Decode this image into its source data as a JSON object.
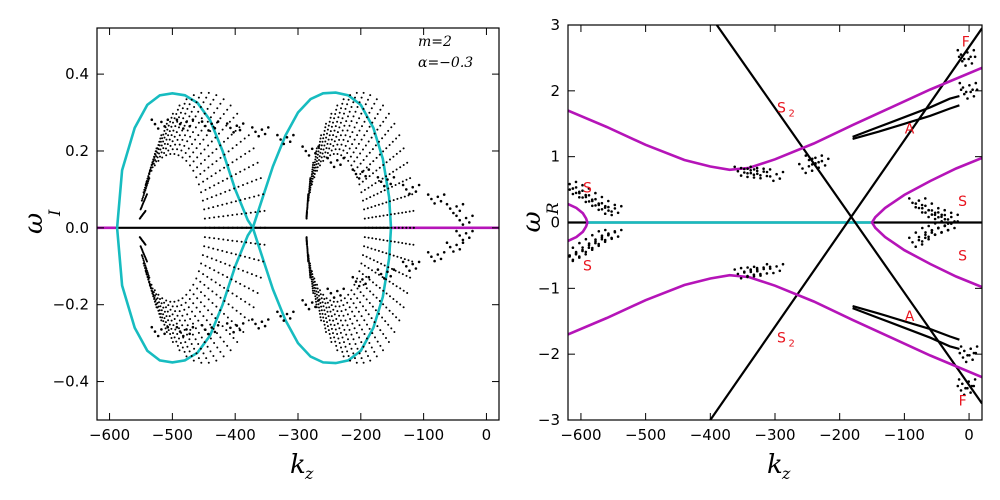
{
  "colors": {
    "black": "#000000",
    "cyan": "#17bcc0",
    "magenta": "#b514b8",
    "red": "#e8141e"
  },
  "chart_data": [
    {
      "type": "scatter",
      "xlabel": "k",
      "xlabel_sub": "z",
      "ylabel": "ω",
      "ylabel_sub": "I",
      "xlim": [
        -620,
        20
      ],
      "ylim": [
        -0.5,
        0.52
      ],
      "xticks": [
        -600,
        -500,
        -400,
        -300,
        -200,
        -100,
        0
      ],
      "xtick_labels": [
        "−600",
        "−500",
        "−400",
        "−300",
        "−200",
        "−100",
        "0"
      ],
      "yticks": [
        -0.4,
        -0.2,
        0.0,
        0.2,
        0.4
      ],
      "ytick_labels": [
        "−0.4",
        "−0.2",
        "0.0",
        "0.2",
        "0.4"
      ],
      "params": [
        "m=2",
        "α=−0.3"
      ],
      "series": [
        {
          "color": "black",
          "style": "line",
          "x": [
            -620,
            -150
          ],
          "y": [
            0,
            0
          ]
        },
        {
          "color": "magenta",
          "style": "line",
          "x": [
            -620,
            -590
          ],
          "y": [
            0,
            0
          ]
        },
        {
          "color": "magenta",
          "style": "line",
          "x": [
            -150,
            20
          ],
          "y": [
            0,
            0
          ]
        },
        {
          "color": "cyan",
          "style": "ellipse",
          "center": [
            -500,
            0.35
          ],
          "semi_x": 7
        },
        {
          "color": "cyan",
          "style": "loop",
          "x": [
            -588,
            -580,
            -560,
            -540,
            -520,
            -500,
            -480,
            -460,
            -440,
            -420,
            -400,
            -380,
            -372,
            -380,
            -400,
            -420,
            -440,
            -460,
            -480,
            -500,
            -520,
            -540,
            -560,
            -580,
            -588
          ],
          "y": [
            0,
            0.15,
            0.26,
            0.32,
            0.345,
            0.35,
            0.345,
            0.325,
            0.28,
            0.2,
            0.1,
            0.02,
            0,
            -0.02,
            -0.1,
            -0.2,
            -0.28,
            -0.325,
            -0.345,
            -0.35,
            -0.345,
            -0.32,
            -0.26,
            -0.15,
            0
          ]
        },
        {
          "color": "cyan",
          "style": "loop",
          "x": [
            -372,
            -360,
            -340,
            -320,
            -300,
            -280,
            -260,
            -240,
            -220,
            -200,
            -180,
            -165,
            -155,
            -152,
            -155,
            -165,
            -180,
            -200,
            -220,
            -240,
            -260,
            -280,
            -300,
            -320,
            -340,
            -360,
            -372
          ],
          "y": [
            0,
            0.06,
            0.16,
            0.24,
            0.3,
            0.335,
            0.35,
            0.352,
            0.345,
            0.32,
            0.26,
            0.18,
            0.08,
            0,
            -0.08,
            -0.18,
            -0.26,
            -0.32,
            -0.345,
            -0.352,
            -0.35,
            -0.335,
            -0.3,
            -0.24,
            -0.16,
            -0.06,
            0
          ]
        },
        {
          "color": "black",
          "style": "dots",
          "note": "upper band",
          "x": [
            -520,
            -480,
            -440,
            -400,
            -360,
            -320,
            -280,
            -240,
            -200,
            -160,
            -120,
            -80,
            -50,
            -35
          ],
          "y": [
            0.27,
            0.27,
            0.265,
            0.26,
            0.25,
            0.23,
            0.2,
            0.17,
            0.14,
            0.12,
            0.1,
            0.075,
            0.05,
            0.02
          ]
        },
        {
          "color": "black",
          "style": "dots",
          "note": "lower band",
          "x": [
            -520,
            -480,
            -440,
            -400,
            -360,
            -320,
            -280,
            -240,
            -200,
            -160,
            -120,
            -80,
            -50,
            -35
          ],
          "y": [
            -0.27,
            -0.27,
            -0.265,
            -0.26,
            -0.25,
            -0.23,
            -0.2,
            -0.17,
            -0.14,
            -0.12,
            -0.1,
            -0.075,
            -0.05,
            -0.02
          ]
        }
      ]
    },
    {
      "type": "line",
      "xlabel": "k",
      "xlabel_sub": "z",
      "ylabel": "ω",
      "ylabel_sub": "R",
      "xlim": [
        -620,
        20
      ],
      "ylim": [
        -3,
        3
      ],
      "xticks": [
        -600,
        -500,
        -400,
        -300,
        -200,
        -100,
        0
      ],
      "xtick_labels": [
        "−600",
        "−500",
        "−400",
        "−300",
        "−200",
        "−100",
        "0"
      ],
      "yticks": [
        -3,
        -2,
        -1,
        0,
        1,
        2,
        3
      ],
      "ytick_labels": [
        "−3",
        "−2",
        "−1",
        "0",
        "1",
        "2",
        "3"
      ],
      "annotations": [
        {
          "text": "F",
          "x": -5,
          "y": 2.75
        },
        {
          "text": "S",
          "sub": "2",
          "x": -290,
          "y": 1.75
        },
        {
          "text": "A",
          "x": -92,
          "y": 1.43
        },
        {
          "text": "S",
          "x": -590,
          "y": 0.53
        },
        {
          "text": "S",
          "x": -10,
          "y": 0.33
        },
        {
          "text": "S",
          "x": -10,
          "y": -0.5
        },
        {
          "text": "S",
          "x": -590,
          "y": -0.65
        },
        {
          "text": "A",
          "x": -92,
          "y": -1.42
        },
        {
          "text": "S",
          "sub": "2",
          "x": -290,
          "y": -1.75
        },
        {
          "text": "F",
          "x": -10,
          "y": -2.7
        }
      ],
      "series": [
        {
          "color": "black",
          "style": "line",
          "x": [
            -620,
            20
          ],
          "y": [
            0,
            0
          ]
        },
        {
          "color": "cyan",
          "style": "line",
          "x": [
            -590,
            -150
          ],
          "y": [
            0,
            0
          ]
        },
        {
          "color": "black",
          "style": "line",
          "x": [
            -390,
            20
          ],
          "y": [
            3,
            -2.75
          ]
        },
        {
          "color": "black",
          "style": "line",
          "x": [
            -400,
            20
          ],
          "y": [
            -3,
            2.95
          ]
        },
        {
          "color": "magenta",
          "style": "line",
          "x": [
            -620,
            -560,
            -500,
            -440,
            -400,
            -370,
            -340,
            -300,
            -240,
            -180,
            -120,
            -60,
            20
          ],
          "y": [
            1.7,
            1.45,
            1.18,
            0.95,
            0.85,
            0.8,
            0.83,
            0.96,
            1.2,
            1.48,
            1.75,
            2.02,
            2.35
          ]
        },
        {
          "color": "magenta",
          "style": "line",
          "x": [
            -620,
            -560,
            -500,
            -440,
            -400,
            -370,
            -340,
            -300,
            -240,
            -180,
            -120,
            -60,
            20
          ],
          "y": [
            -1.7,
            -1.45,
            -1.18,
            -0.95,
            -0.85,
            -0.8,
            -0.83,
            -0.96,
            -1.2,
            -1.48,
            -1.75,
            -2.02,
            -2.35
          ]
        },
        {
          "color": "magenta",
          "style": "line",
          "x": [
            -620,
            -607,
            -597,
            -592,
            -590,
            -592,
            -597,
            -607,
            -620
          ],
          "y": [
            0.28,
            0.22,
            0.14,
            0.06,
            0,
            -0.06,
            -0.14,
            -0.22,
            -0.28
          ]
        },
        {
          "color": "magenta",
          "style": "line",
          "x": [
            20,
            -20,
            -60,
            -100,
            -130,
            -145,
            -150,
            -145,
            -130,
            -100,
            -60,
            -20,
            20
          ],
          "y": [
            0.98,
            0.82,
            0.63,
            0.42,
            0.22,
            0.08,
            0,
            -0.08,
            -0.22,
            -0.42,
            -0.63,
            -0.82,
            -0.98
          ]
        },
        {
          "color": "black",
          "style": "line",
          "x": [
            -180,
            -140,
            -100,
            -60,
            -30,
            -15
          ],
          "y": [
            1.3,
            1.45,
            1.6,
            1.75,
            1.88,
            1.92
          ]
        },
        {
          "color": "black",
          "style": "line",
          "x": [
            -180,
            -140,
            -100,
            -60,
            -30,
            -15
          ],
          "y": [
            1.27,
            1.38,
            1.5,
            1.62,
            1.73,
            1.78
          ]
        },
        {
          "color": "black",
          "style": "line",
          "x": [
            -180,
            -140,
            -100,
            -60,
            -30,
            -15
          ],
          "y": [
            -1.3,
            -1.45,
            -1.6,
            -1.75,
            -1.88,
            -1.92
          ]
        },
        {
          "color": "black",
          "style": "line",
          "x": [
            -180,
            -140,
            -100,
            -60,
            -30,
            -15
          ],
          "y": [
            -1.27,
            -1.38,
            -1.5,
            -1.62,
            -1.73,
            -1.78
          ]
        },
        {
          "color": "black",
          "style": "dots",
          "x": [
            -620,
            -610,
            -600,
            -590,
            -580,
            -570,
            -560,
            -550,
            -620,
            -610,
            -600,
            -590,
            -580,
            -570,
            -560,
            -550,
            -350,
            -340,
            -330,
            -320,
            -300,
            -350,
            -340,
            -330,
            -320,
            -300,
            -240,
            -230,
            -250,
            -80,
            -70,
            -60,
            -50,
            -40,
            -30,
            -80,
            -70,
            -60,
            -50,
            -40,
            -30,
            -5,
            -3,
            -2,
            0,
            -5,
            -3,
            -2,
            0
          ],
          "y": [
            0.55,
            0.5,
            0.45,
            0.38,
            0.32,
            0.26,
            0.2,
            0.18,
            -0.55,
            -0.5,
            -0.45,
            -0.38,
            -0.32,
            -0.26,
            -0.2,
            -0.18,
            0.78,
            0.76,
            0.75,
            0.74,
            0.7,
            -0.78,
            -0.76,
            -0.75,
            -0.74,
            -0.7,
            0.95,
            0.9,
            0.82,
            0.3,
            0.22,
            0.15,
            0.12,
            0.08,
            0.05,
            -0.3,
            -0.22,
            -0.15,
            -0.12,
            -0.08,
            -0.05,
            2.55,
            2.45,
            2.05,
            1.95,
            -2.55,
            -2.45,
            -2.05,
            -1.95
          ]
        }
      ]
    }
  ]
}
